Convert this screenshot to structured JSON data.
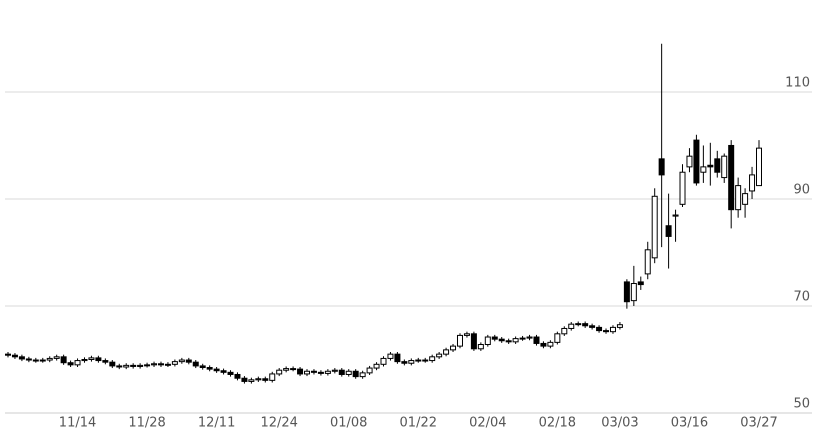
{
  "chart_data": {
    "type": "candlestick",
    "categories": [
      null,
      null,
      null,
      null,
      null,
      null,
      null,
      null,
      null,
      null,
      "11/14",
      null,
      null,
      null,
      null,
      null,
      null,
      null,
      null,
      null,
      "11/28",
      null,
      null,
      null,
      null,
      null,
      null,
      null,
      null,
      null,
      "12/11",
      null,
      null,
      null,
      null,
      null,
      null,
      null,
      null,
      "12/24",
      null,
      null,
      null,
      null,
      null,
      null,
      null,
      null,
      null,
      "01/08",
      null,
      null,
      null,
      null,
      null,
      null,
      null,
      null,
      null,
      "01/22",
      null,
      null,
      null,
      null,
      null,
      null,
      null,
      null,
      null,
      "02/04",
      null,
      null,
      null,
      null,
      null,
      null,
      null,
      null,
      null,
      "02/18",
      null,
      null,
      null,
      null,
      null,
      null,
      null,
      null,
      "03/03",
      null,
      null,
      null,
      null,
      null,
      null,
      null,
      null,
      null,
      "03/16",
      null,
      null,
      null,
      null,
      null,
      null,
      null,
      null,
      null,
      "03/27"
    ],
    "open": [
      61.0,
      60.8,
      60.5,
      60.1,
      59.9,
      59.8,
      59.9,
      60.2,
      60.5,
      59.4,
      59.0,
      59.8,
      60.0,
      60.3,
      59.8,
      59.5,
      58.8,
      58.6,
      58.9,
      58.7,
      58.9,
      59.0,
      59.2,
      59.0,
      59.1,
      59.6,
      59.9,
      59.5,
      58.8,
      58.5,
      58.2,
      57.9,
      57.6,
      57.2,
      56.5,
      55.9,
      56.2,
      56.4,
      56.1,
      57.3,
      58.0,
      58.3,
      58.2,
      57.3,
      57.8,
      57.6,
      57.4,
      57.8,
      58.0,
      57.2,
      57.8,
      56.8,
      57.5,
      58.4,
      59.1,
      60.2,
      61.0,
      59.6,
      59.3,
      59.8,
      59.9,
      59.8,
      60.5,
      61.0,
      61.8,
      62.5,
      64.5,
      64.8,
      62.0,
      62.8,
      64.2,
      63.8,
      63.5,
      63.3,
      63.9,
      64.0,
      64.2,
      63.0,
      62.5,
      63.2,
      64.8,
      65.8,
      66.6,
      66.7,
      66.3,
      66.0,
      65.4,
      65.2,
      66.0,
      74.5,
      71.0,
      74.5,
      76.0,
      79.0,
      97.5,
      85.0,
      86.8,
      89.0,
      96.0,
      101.0,
      95.0,
      96.3,
      97.5,
      94.0,
      100.0,
      88.0,
      89.0,
      91.5,
      92.5
    ],
    "high": [
      61.4,
      61.2,
      60.9,
      60.5,
      60.3,
      60.3,
      60.6,
      60.9,
      60.9,
      59.8,
      60.2,
      60.4,
      60.7,
      60.7,
      60.2,
      59.9,
      59.2,
      59.3,
      59.3,
      59.3,
      59.4,
      59.6,
      59.6,
      59.5,
      60.0,
      60.3,
      60.3,
      59.9,
      59.2,
      58.9,
      58.6,
      58.3,
      58.0,
      57.6,
      56.9,
      56.6,
      56.8,
      56.8,
      57.7,
      58.4,
      58.7,
      58.7,
      58.6,
      58.2,
      58.2,
      58.0,
      58.2,
      58.4,
      58.4,
      58.2,
      58.2,
      57.9,
      58.8,
      59.5,
      60.6,
      61.4,
      61.4,
      60.0,
      60.2,
      60.3,
      60.3,
      60.9,
      61.4,
      62.2,
      62.9,
      64.9,
      65.2,
      65.2,
      63.2,
      64.6,
      64.6,
      64.2,
      63.9,
      64.3,
      64.4,
      64.6,
      64.6,
      63.4,
      63.6,
      65.2,
      66.2,
      67.0,
      67.1,
      67.1,
      66.7,
      66.4,
      65.8,
      66.4,
      67.0,
      75.0,
      77.5,
      75.5,
      82.0,
      92.0,
      119.0,
      91.0,
      88.0,
      96.5,
      99.5,
      102.0,
      100.0,
      100.5,
      99.0,
      98.5,
      101.0,
      94.0,
      92.0,
      96.0,
      101.0
    ],
    "low": [
      60.4,
      60.1,
      59.7,
      59.5,
      59.4,
      59.4,
      59.5,
      59.8,
      59.0,
      58.6,
      58.6,
      59.4,
      59.6,
      59.4,
      59.1,
      58.4,
      58.2,
      58.2,
      58.3,
      58.3,
      58.5,
      58.6,
      58.6,
      58.6,
      58.7,
      59.2,
      59.1,
      58.4,
      58.1,
      57.8,
      57.5,
      57.2,
      56.8,
      56.1,
      55.5,
      55.5,
      55.8,
      55.7,
      55.7,
      56.9,
      57.6,
      57.8,
      56.9,
      56.9,
      57.2,
      57.0,
      57.0,
      57.4,
      56.8,
      56.8,
      56.4,
      56.4,
      57.1,
      58.0,
      58.7,
      59.8,
      59.2,
      58.9,
      58.9,
      59.4,
      59.4,
      59.4,
      60.1,
      60.6,
      61.4,
      62.1,
      64.1,
      61.6,
      61.6,
      62.4,
      63.4,
      63.1,
      62.9,
      62.9,
      63.5,
      63.6,
      62.6,
      62.1,
      62.1,
      62.8,
      64.4,
      65.4,
      66.2,
      65.9,
      65.6,
      65.0,
      64.8,
      64.8,
      65.6,
      69.5,
      70.0,
      73.0,
      75.0,
      78.0,
      81.0,
      77.0,
      82.0,
      88.5,
      95.0,
      92.5,
      93.0,
      92.5,
      94.0,
      93.0,
      84.5,
      86.5,
      86.5,
      90.0,
      92.5
    ],
    "close": [
      60.8,
      60.5,
      60.1,
      59.9,
      59.8,
      59.9,
      60.2,
      60.5,
      59.4,
      59.0,
      59.8,
      60.0,
      60.3,
      59.8,
      59.5,
      58.8,
      58.6,
      58.9,
      58.7,
      58.9,
      59.0,
      59.2,
      59.0,
      59.1,
      59.6,
      59.9,
      59.5,
      58.8,
      58.5,
      58.2,
      57.9,
      57.6,
      57.2,
      56.5,
      55.9,
      56.2,
      56.4,
      56.1,
      57.3,
      58.0,
      58.3,
      58.2,
      57.3,
      57.8,
      57.6,
      57.4,
      57.8,
      58.0,
      57.2,
      57.8,
      56.8,
      57.5,
      58.4,
      59.1,
      60.2,
      61.0,
      59.6,
      59.3,
      59.8,
      59.9,
      59.8,
      60.5,
      61.0,
      61.8,
      62.5,
      64.5,
      64.8,
      62.0,
      62.8,
      64.2,
      63.8,
      63.5,
      63.3,
      63.9,
      64.0,
      64.2,
      63.0,
      62.5,
      63.2,
      64.8,
      65.8,
      66.6,
      66.7,
      66.3,
      66.0,
      65.4,
      65.2,
      66.0,
      66.5,
      70.8,
      74.2,
      74.0,
      80.5,
      90.5,
      94.5,
      83.0,
      87.0,
      95.0,
      98.0,
      93.0,
      96.0,
      96.0,
      95.0,
      98.0,
      88.0,
      92.5,
      91.0,
      94.5,
      99.5
    ],
    "up_color": "#ffffff",
    "down_color": "#000000",
    "line_color": "#000000",
    "ylim": [
      50,
      127
    ],
    "yticks": [
      50,
      70,
      90,
      110
    ],
    "grid": true,
    "y_axis_side": "right"
  }
}
